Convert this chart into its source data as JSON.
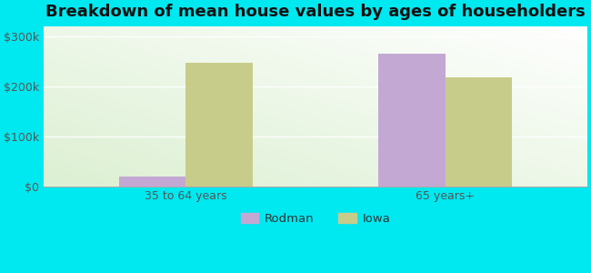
{
  "title": "Breakdown of mean house values by ages of householders",
  "categories": [
    "35 to 64 years",
    "65 years+"
  ],
  "rodman_values": [
    20000,
    265000
  ],
  "iowa_values": [
    248000,
    218000
  ],
  "rodman_color": "#c4a8d4",
  "iowa_color": "#c8cc8a",
  "ylim": [
    0,
    320000
  ],
  "yticks": [
    0,
    100000,
    200000,
    300000
  ],
  "ytick_labels": [
    "$0",
    "$100k",
    "$200k",
    "$300k"
  ],
  "background_outer": "#00e8f0",
  "title_fontsize": 13,
  "legend_labels": [
    "Rodman",
    "Iowa"
  ],
  "bar_width": 0.32,
  "group_positions": [
    0.38,
    1.62
  ]
}
